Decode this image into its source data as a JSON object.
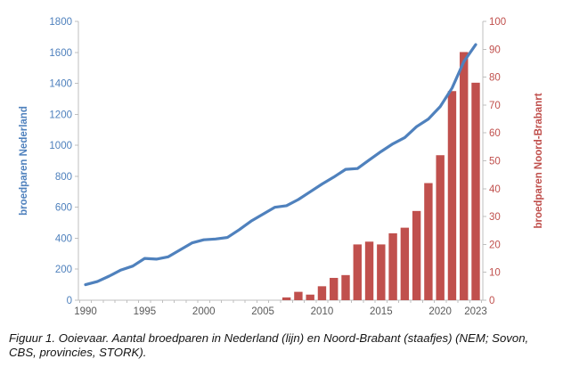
{
  "figure": {
    "caption": "Figuur 1. Ooievaar. Aantal broedparen in Nederland (lijn) en Noord-Brabant (staafjes) (NEM; Sovon, CBS, provincies, STORK)."
  },
  "chart_data": {
    "type": "combo-line-bar",
    "title": "",
    "legend": "none",
    "grid": false,
    "x": [
      1990,
      1991,
      1992,
      1993,
      1994,
      1995,
      1996,
      1997,
      1998,
      1999,
      2000,
      2001,
      2002,
      2003,
      2004,
      2005,
      2006,
      2007,
      2008,
      2009,
      2010,
      2011,
      2012,
      2013,
      2014,
      2015,
      2016,
      2017,
      2018,
      2019,
      2020,
      2021,
      2022,
      2023
    ],
    "series": [
      {
        "name": "broedparen Nederland",
        "type": "line",
        "axis": "left",
        "color": "#4F81BD",
        "values": [
          100,
          120,
          155,
          195,
          220,
          270,
          265,
          280,
          325,
          370,
          390,
          395,
          405,
          455,
          510,
          555,
          600,
          610,
          650,
          700,
          750,
          795,
          845,
          850,
          905,
          960,
          1010,
          1050,
          1120,
          1170,
          1250,
          1370,
          1540,
          1650
        ]
      },
      {
        "name": "broedparen Noord-Brabant",
        "type": "bar",
        "axis": "right",
        "color": "#C0504D",
        "values": [
          null,
          null,
          null,
          null,
          null,
          null,
          null,
          null,
          null,
          null,
          null,
          null,
          null,
          null,
          null,
          null,
          null,
          1,
          3,
          2,
          5,
          8,
          9,
          20,
          21,
          20,
          24,
          26,
          32,
          42,
          52,
          75,
          89,
          78
        ]
      }
    ],
    "left_axis": {
      "title": "broedparen Nederland",
      "min": 0,
      "max": 1800,
      "step": 200,
      "tick_labels": [
        "0",
        "200",
        "400",
        "600",
        "800",
        "1000",
        "1200",
        "1400",
        "1600",
        "1800"
      ],
      "color": "#4F81BD"
    },
    "right_axis": {
      "title": "broedparen Noord-Brabanrt",
      "min": 0,
      "max": 100,
      "step": 10,
      "tick_labels": [
        "0",
        "10",
        "20",
        "30",
        "40",
        "50",
        "60",
        "70",
        "80",
        "90",
        "100"
      ],
      "color": "#C0504D"
    },
    "x_axis": {
      "tick_years": [
        1990,
        1995,
        2000,
        2005,
        2010,
        2015,
        2020,
        2023
      ],
      "tick_labels": [
        "1990",
        "1995",
        "2000",
        "2005",
        "2010",
        "2015",
        "2020",
        "2023"
      ],
      "label_color": "#595959",
      "axis_color": "#BFBFBF"
    }
  }
}
